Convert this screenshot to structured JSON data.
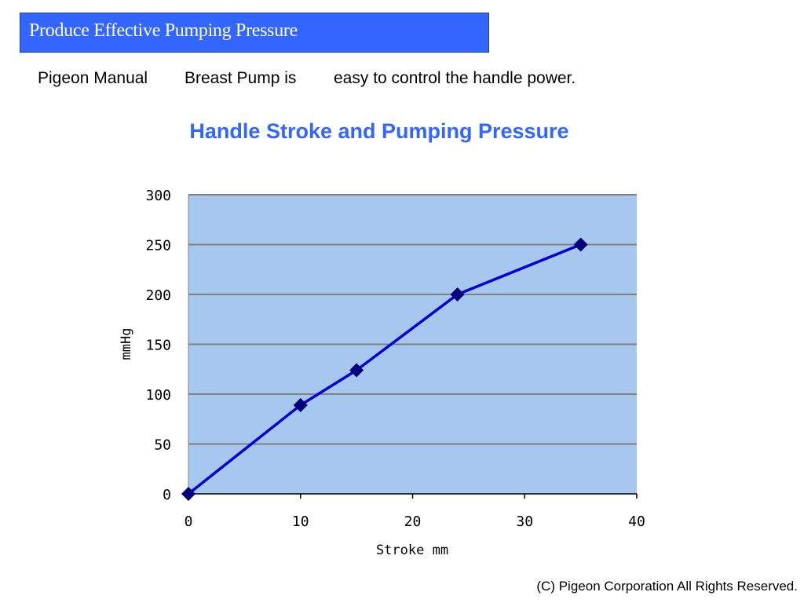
{
  "header": {
    "title": "Produce Effective Pumping Pressure"
  },
  "subtitle": {
    "part1": "Pigeon Manual",
    "part2": "Breast Pump is",
    "part3": "easy to control the handle power."
  },
  "footer": {
    "copyright": "(C) Pigeon Corporation All Rights Reserved."
  },
  "colors": {
    "banner": "#3366ff",
    "chart_title": "#3366ff",
    "plot_background": "#a6c8ee",
    "gridline": "#808080",
    "line": "#0000dd",
    "marker": "#00007f"
  },
  "chart_data": {
    "type": "line",
    "title": "Handle Stroke and Pumping Pressure",
    "xlabel": "Stroke mm",
    "ylabel": "mmHg",
    "xlim": [
      0,
      40
    ],
    "ylim": [
      0,
      300
    ],
    "xticks": [
      0,
      10,
      20,
      30,
      40
    ],
    "yticks": [
      0,
      50,
      100,
      150,
      200,
      250,
      300
    ],
    "grid": true,
    "legend": "none",
    "marker": "diamond",
    "series": [
      {
        "x": [
          0,
          10,
          15,
          24,
          35
        ],
        "y": [
          0,
          89,
          124,
          200,
          250
        ]
      }
    ]
  }
}
